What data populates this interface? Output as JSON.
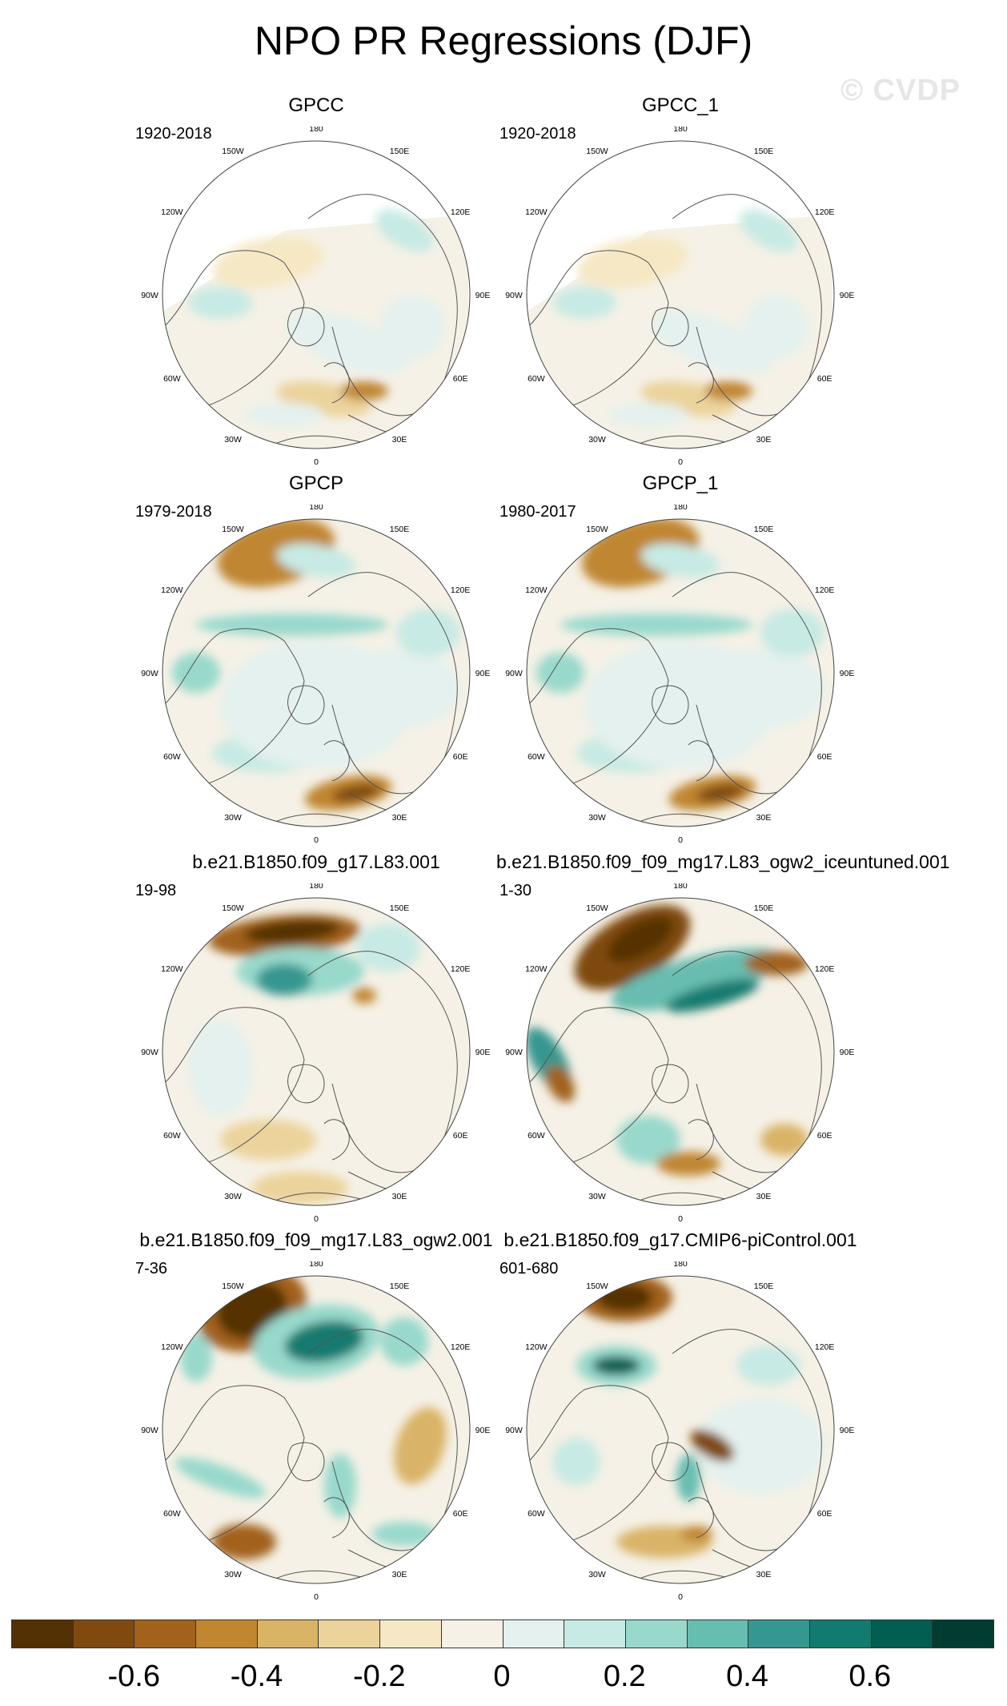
{
  "title": "NPO PR Regressions (DJF)",
  "watermark": "© CVDP",
  "panels": [
    {
      "title": "GPCC",
      "years": "1920-2018",
      "pattern": "gpcc"
    },
    {
      "title": "GPCC_1",
      "years": "1920-2018",
      "pattern": "gpcc"
    },
    {
      "title": "GPCP",
      "years": "1979-2018",
      "pattern": "gpcp"
    },
    {
      "title": "GPCP_1",
      "years": "1980-2017",
      "pattern": "gpcp"
    },
    {
      "title": "b.e21.B1850.f09_g17.L83.001",
      "years": "19-98",
      "pattern": "m1"
    },
    {
      "title": "b.e21.B1850.f09_f09_mg17.L83_ogw2_iceuntuned.001",
      "years": "1-30",
      "pattern": "m2"
    },
    {
      "title": "b.e21.B1850.f09_f09_mg17.L83_ogw2.001",
      "years": "7-36",
      "pattern": "m3"
    },
    {
      "title": "b.e21.B1850.f09_g17.CMIP6-piControl.001",
      "years": "601-680",
      "pattern": "m4"
    }
  ],
  "longitude_labels": [
    "180",
    "150E",
    "120E",
    "90E",
    "60E",
    "30E",
    "0",
    "30W",
    "60W",
    "90W",
    "120W",
    "150W"
  ],
  "colorbar": {
    "colors": [
      "#543005",
      "#7f4a10",
      "#a2621b",
      "#c08630",
      "#d9b467",
      "#ebd39b",
      "#f6e8c4",
      "#f5f1e6",
      "#e4f1ee",
      "#c7eae4",
      "#98d9cc",
      "#67bdb0",
      "#35978f",
      "#137a6f",
      "#015e51",
      "#003c30"
    ],
    "labels": [
      {
        "text": "-0.6",
        "value": -0.6
      },
      {
        "text": "-0.4",
        "value": -0.4
      },
      {
        "text": "-0.2",
        "value": -0.2
      },
      {
        "text": "0",
        "value": 0
      },
      {
        "text": "0.2",
        "value": 0.2
      },
      {
        "text": "0.4",
        "value": 0.4
      },
      {
        "text": "0.6",
        "value": 0.6
      }
    ],
    "min": -0.8,
    "max": 0.8
  }
}
